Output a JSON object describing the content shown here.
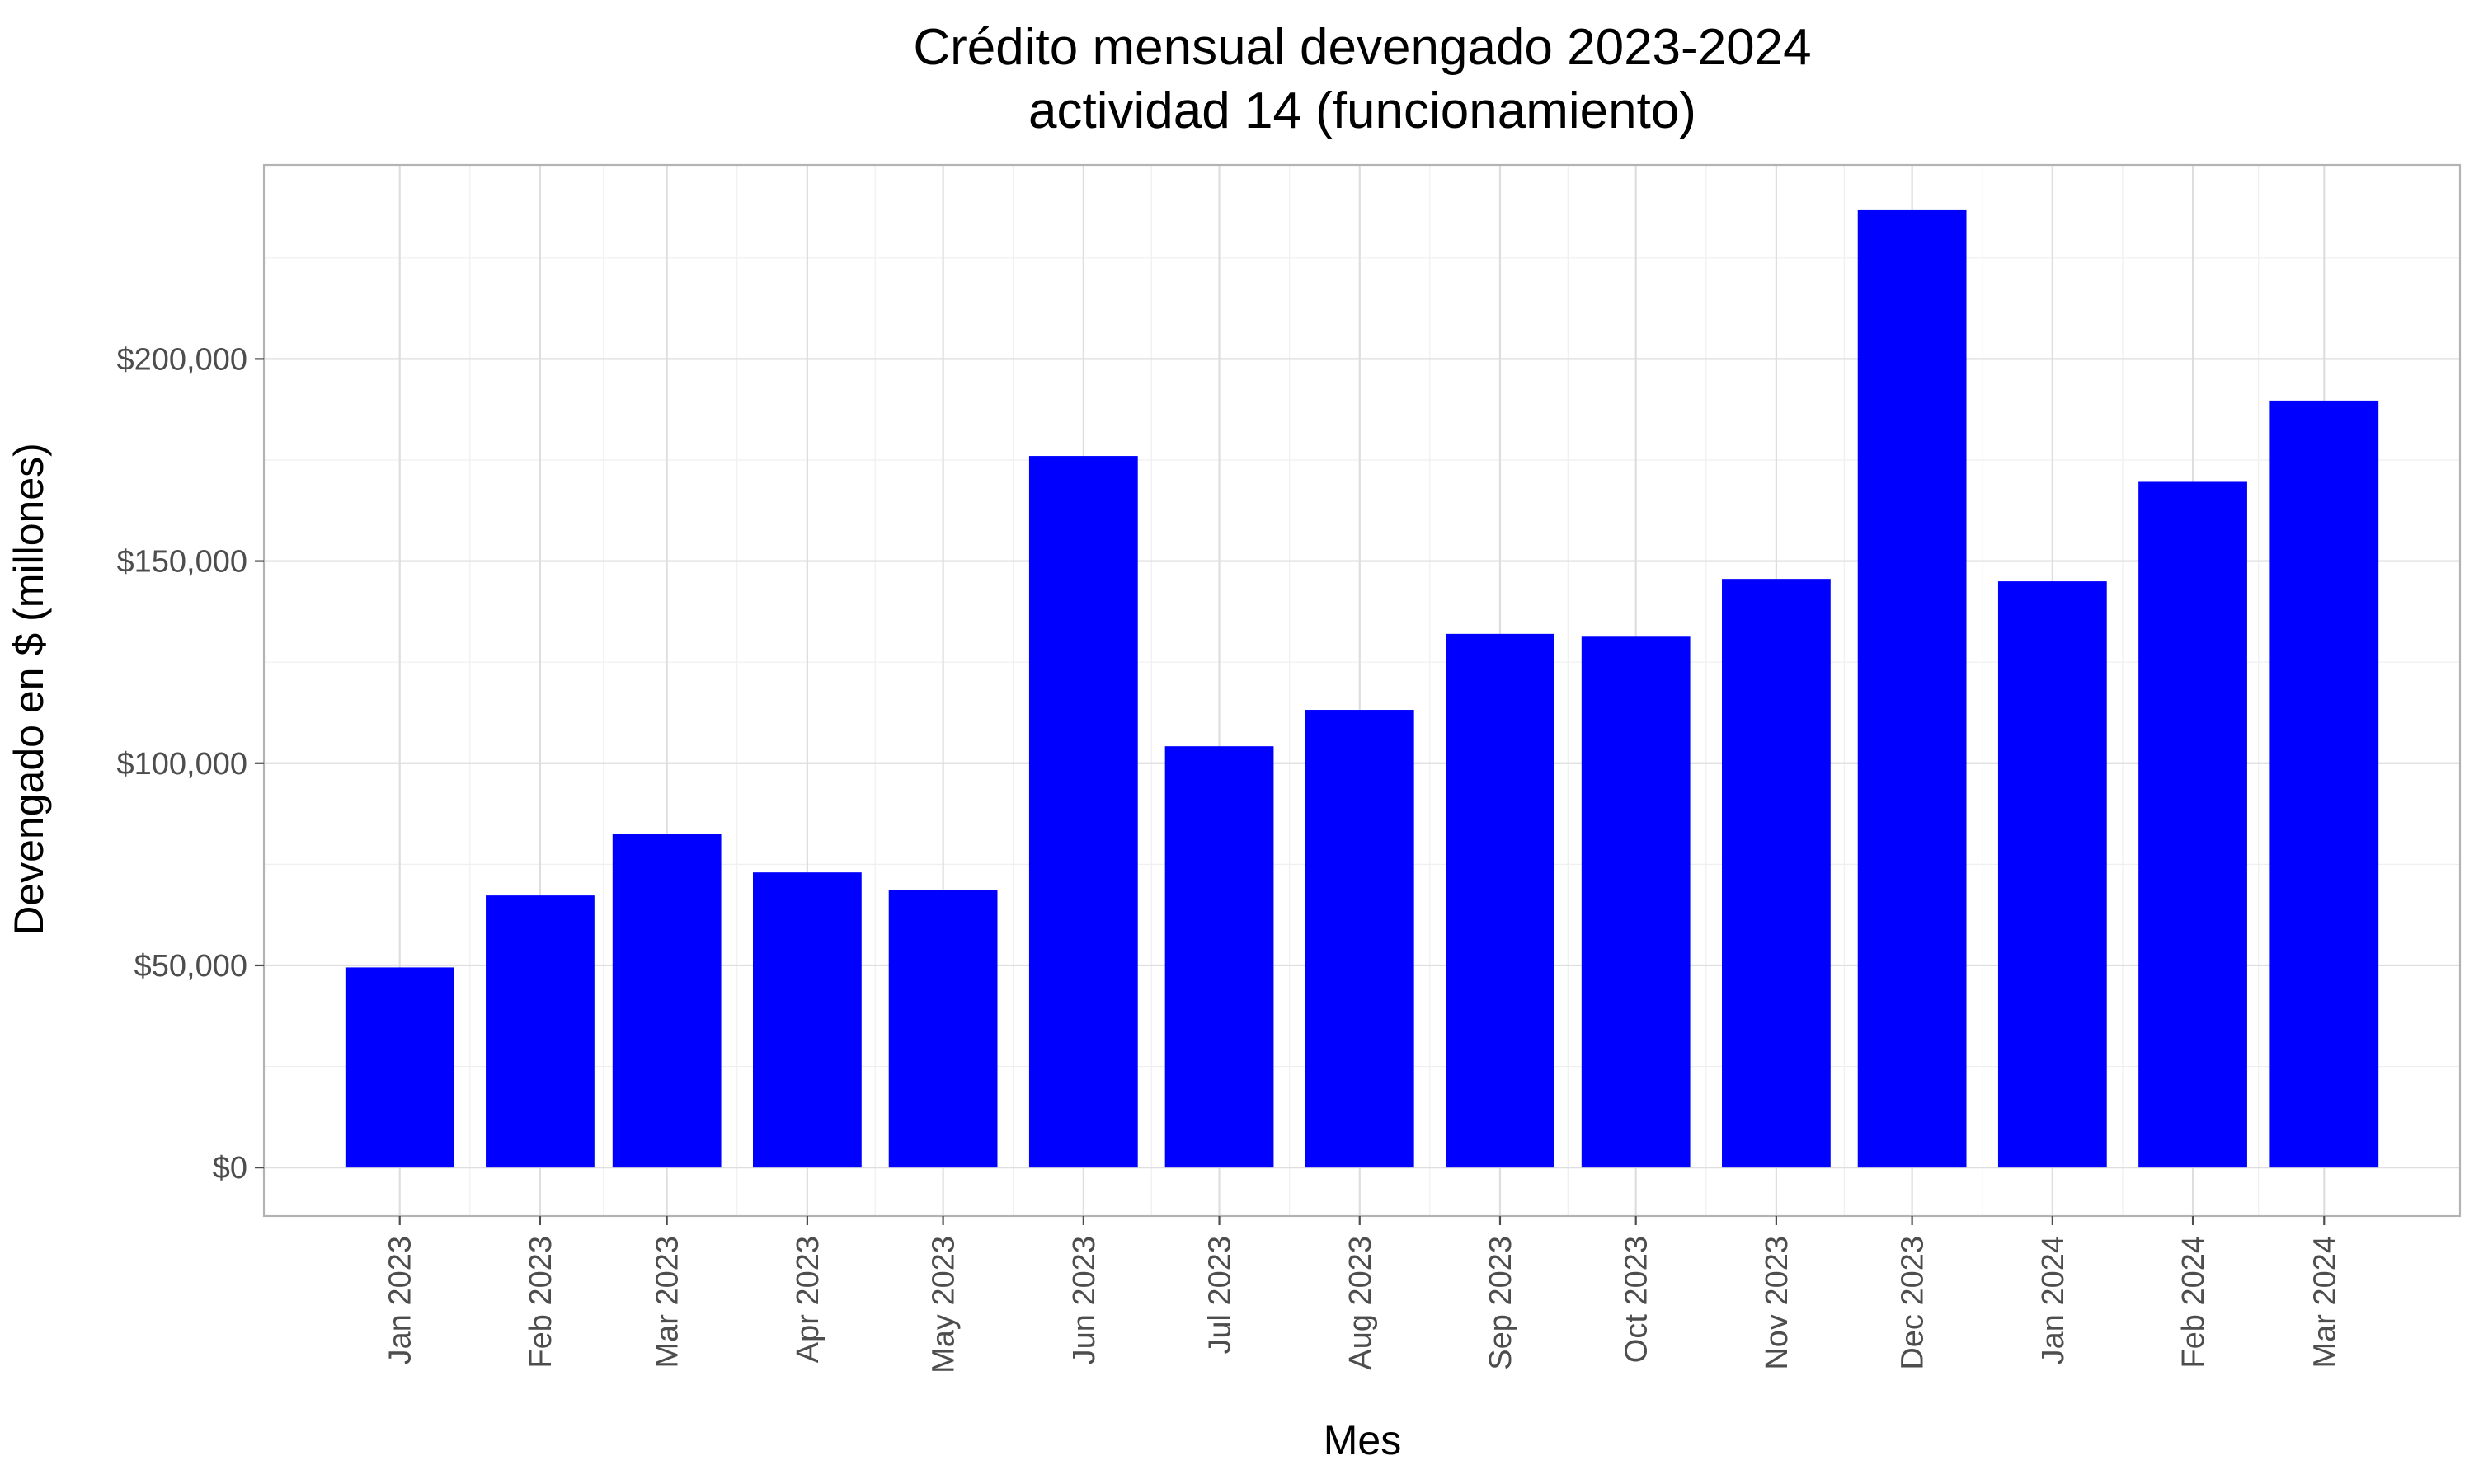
{
  "chart_data": {
    "type": "bar",
    "title_lines": [
      "Crédito mensual devengado 2023-2024",
      "actividad 14 (funcionamiento)"
    ],
    "xlabel": "Mes",
    "ylabel": "Devengado en $ (millones)",
    "categories": [
      "Jan 2023",
      "Feb 2023",
      "Mar 2023",
      "Apr 2023",
      "May 2023",
      "Jun 2023",
      "Jul 2023",
      "Aug 2023",
      "Sep 2023",
      "Oct 2023",
      "Nov 2023",
      "Dec 2023",
      "Jan 2024",
      "Feb 2024",
      "Mar 2024"
    ],
    "dates": [
      "2023-01-15",
      "2023-02-15",
      "2023-03-15",
      "2023-04-15",
      "2023-05-15",
      "2023-06-15",
      "2023-07-15",
      "2023-08-15",
      "2023-09-15",
      "2023-10-15",
      "2023-11-15",
      "2023-12-15",
      "2024-01-15",
      "2024-02-15",
      "2024-03-15"
    ],
    "values": [
      49500,
      67300,
      82500,
      73000,
      68600,
      176000,
      104200,
      113200,
      132000,
      131300,
      145600,
      236800,
      145000,
      169600,
      189700
    ],
    "ylim": [
      -12000,
      248000
    ],
    "yticks": [
      0,
      50000,
      100000,
      150000,
      200000
    ],
    "ytick_labels": [
      "$0",
      "$50,000",
      "$100,000",
      "$150,000",
      "$200,000"
    ],
    "bar_color": "#0000ff",
    "grid": true,
    "legend": "none"
  }
}
